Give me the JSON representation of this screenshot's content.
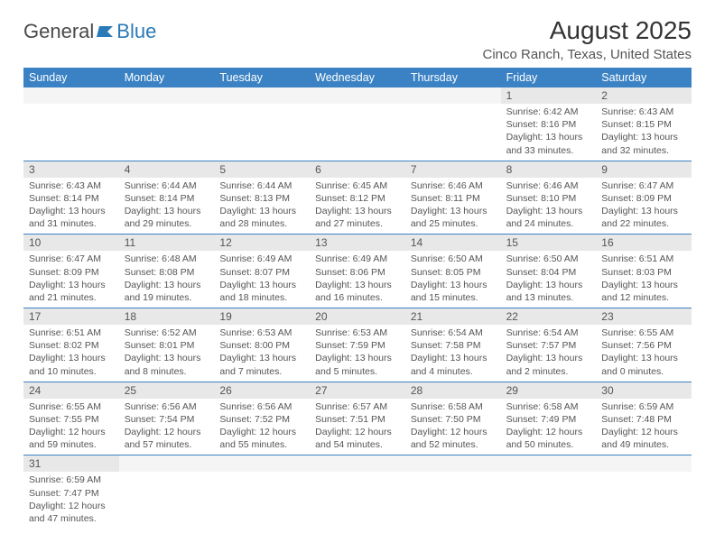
{
  "logo": {
    "text1": "General",
    "text2": "Blue"
  },
  "title": "August 2025",
  "location": "Cinco Ranch, Texas, United States",
  "colors": {
    "header_bg": "#3b82c4",
    "row_border": "#3b82c4",
    "daynum_bg": "#e8e8e8",
    "text": "#555555",
    "page_bg": "#ffffff"
  },
  "dayNames": [
    "Sunday",
    "Monday",
    "Tuesday",
    "Wednesday",
    "Thursday",
    "Friday",
    "Saturday"
  ],
  "weeks": [
    [
      null,
      null,
      null,
      null,
      null,
      {
        "n": "1",
        "sr": "Sunrise: 6:42 AM",
        "ss": "Sunset: 8:16 PM",
        "dl": "Daylight: 13 hours and 33 minutes."
      },
      {
        "n": "2",
        "sr": "Sunrise: 6:43 AM",
        "ss": "Sunset: 8:15 PM",
        "dl": "Daylight: 13 hours and 32 minutes."
      }
    ],
    [
      {
        "n": "3",
        "sr": "Sunrise: 6:43 AM",
        "ss": "Sunset: 8:14 PM",
        "dl": "Daylight: 13 hours and 31 minutes."
      },
      {
        "n": "4",
        "sr": "Sunrise: 6:44 AM",
        "ss": "Sunset: 8:14 PM",
        "dl": "Daylight: 13 hours and 29 minutes."
      },
      {
        "n": "5",
        "sr": "Sunrise: 6:44 AM",
        "ss": "Sunset: 8:13 PM",
        "dl": "Daylight: 13 hours and 28 minutes."
      },
      {
        "n": "6",
        "sr": "Sunrise: 6:45 AM",
        "ss": "Sunset: 8:12 PM",
        "dl": "Daylight: 13 hours and 27 minutes."
      },
      {
        "n": "7",
        "sr": "Sunrise: 6:46 AM",
        "ss": "Sunset: 8:11 PM",
        "dl": "Daylight: 13 hours and 25 minutes."
      },
      {
        "n": "8",
        "sr": "Sunrise: 6:46 AM",
        "ss": "Sunset: 8:10 PM",
        "dl": "Daylight: 13 hours and 24 minutes."
      },
      {
        "n": "9",
        "sr": "Sunrise: 6:47 AM",
        "ss": "Sunset: 8:09 PM",
        "dl": "Daylight: 13 hours and 22 minutes."
      }
    ],
    [
      {
        "n": "10",
        "sr": "Sunrise: 6:47 AM",
        "ss": "Sunset: 8:09 PM",
        "dl": "Daylight: 13 hours and 21 minutes."
      },
      {
        "n": "11",
        "sr": "Sunrise: 6:48 AM",
        "ss": "Sunset: 8:08 PM",
        "dl": "Daylight: 13 hours and 19 minutes."
      },
      {
        "n": "12",
        "sr": "Sunrise: 6:49 AM",
        "ss": "Sunset: 8:07 PM",
        "dl": "Daylight: 13 hours and 18 minutes."
      },
      {
        "n": "13",
        "sr": "Sunrise: 6:49 AM",
        "ss": "Sunset: 8:06 PM",
        "dl": "Daylight: 13 hours and 16 minutes."
      },
      {
        "n": "14",
        "sr": "Sunrise: 6:50 AM",
        "ss": "Sunset: 8:05 PM",
        "dl": "Daylight: 13 hours and 15 minutes."
      },
      {
        "n": "15",
        "sr": "Sunrise: 6:50 AM",
        "ss": "Sunset: 8:04 PM",
        "dl": "Daylight: 13 hours and 13 minutes."
      },
      {
        "n": "16",
        "sr": "Sunrise: 6:51 AM",
        "ss": "Sunset: 8:03 PM",
        "dl": "Daylight: 13 hours and 12 minutes."
      }
    ],
    [
      {
        "n": "17",
        "sr": "Sunrise: 6:51 AM",
        "ss": "Sunset: 8:02 PM",
        "dl": "Daylight: 13 hours and 10 minutes."
      },
      {
        "n": "18",
        "sr": "Sunrise: 6:52 AM",
        "ss": "Sunset: 8:01 PM",
        "dl": "Daylight: 13 hours and 8 minutes."
      },
      {
        "n": "19",
        "sr": "Sunrise: 6:53 AM",
        "ss": "Sunset: 8:00 PM",
        "dl": "Daylight: 13 hours and 7 minutes."
      },
      {
        "n": "20",
        "sr": "Sunrise: 6:53 AM",
        "ss": "Sunset: 7:59 PM",
        "dl": "Daylight: 13 hours and 5 minutes."
      },
      {
        "n": "21",
        "sr": "Sunrise: 6:54 AM",
        "ss": "Sunset: 7:58 PM",
        "dl": "Daylight: 13 hours and 4 minutes."
      },
      {
        "n": "22",
        "sr": "Sunrise: 6:54 AM",
        "ss": "Sunset: 7:57 PM",
        "dl": "Daylight: 13 hours and 2 minutes."
      },
      {
        "n": "23",
        "sr": "Sunrise: 6:55 AM",
        "ss": "Sunset: 7:56 PM",
        "dl": "Daylight: 13 hours and 0 minutes."
      }
    ],
    [
      {
        "n": "24",
        "sr": "Sunrise: 6:55 AM",
        "ss": "Sunset: 7:55 PM",
        "dl": "Daylight: 12 hours and 59 minutes."
      },
      {
        "n": "25",
        "sr": "Sunrise: 6:56 AM",
        "ss": "Sunset: 7:54 PM",
        "dl": "Daylight: 12 hours and 57 minutes."
      },
      {
        "n": "26",
        "sr": "Sunrise: 6:56 AM",
        "ss": "Sunset: 7:52 PM",
        "dl": "Daylight: 12 hours and 55 minutes."
      },
      {
        "n": "27",
        "sr": "Sunrise: 6:57 AM",
        "ss": "Sunset: 7:51 PM",
        "dl": "Daylight: 12 hours and 54 minutes."
      },
      {
        "n": "28",
        "sr": "Sunrise: 6:58 AM",
        "ss": "Sunset: 7:50 PM",
        "dl": "Daylight: 12 hours and 52 minutes."
      },
      {
        "n": "29",
        "sr": "Sunrise: 6:58 AM",
        "ss": "Sunset: 7:49 PM",
        "dl": "Daylight: 12 hours and 50 minutes."
      },
      {
        "n": "30",
        "sr": "Sunrise: 6:59 AM",
        "ss": "Sunset: 7:48 PM",
        "dl": "Daylight: 12 hours and 49 minutes."
      }
    ],
    [
      {
        "n": "31",
        "sr": "Sunrise: 6:59 AM",
        "ss": "Sunset: 7:47 PM",
        "dl": "Daylight: 12 hours and 47 minutes."
      },
      null,
      null,
      null,
      null,
      null,
      null
    ]
  ]
}
